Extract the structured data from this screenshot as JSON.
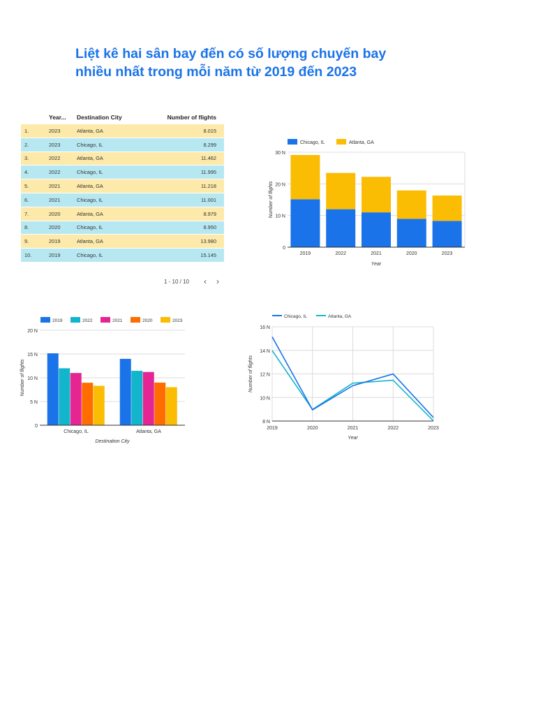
{
  "title": {
    "line1": "Liệt kê hai sân bay đến có số lượng chuyến bay",
    "line2": "nhiều nhất trong mỗi năm từ 2019 đến 2023"
  },
  "colors": {
    "title": "#1a73e8",
    "chicago": "#1a73e8",
    "atlanta": "#fbbc04",
    "y2019": "#1a73e8",
    "y2022": "#12b5cb",
    "y2021": "#e52592",
    "y2020": "#ff6d01",
    "y2023": "#fbbc04",
    "line_chicago": "#1a73e8",
    "line_atlanta": "#12b5cb",
    "row_odd": "#fde9a9",
    "row_even": "#b7e8f2"
  },
  "table": {
    "headers": {
      "year": "Year...",
      "city": "Destination City",
      "flights": "Number of flights"
    },
    "rows": [
      {
        "idx": "1.",
        "year": "2023",
        "city": "Atlanta, GA",
        "flights": "8.015"
      },
      {
        "idx": "2.",
        "year": "2023",
        "city": "Chicago, IL",
        "flights": "8.299"
      },
      {
        "idx": "3.",
        "year": "2022",
        "city": "Atlanta, GA",
        "flights": "11.462"
      },
      {
        "idx": "4.",
        "year": "2022",
        "city": "Chicago, IL",
        "flights": "11.995"
      },
      {
        "idx": "5.",
        "year": "2021",
        "city": "Atlanta, GA",
        "flights": "11.218"
      },
      {
        "idx": "6.",
        "year": "2021",
        "city": "Chicago, IL",
        "flights": "11.001"
      },
      {
        "idx": "7.",
        "year": "2020",
        "city": "Atlanta, GA",
        "flights": "8.979"
      },
      {
        "idx": "8.",
        "year": "2020",
        "city": "Chicago, IL",
        "flights": "8.950"
      },
      {
        "idx": "9.",
        "year": "2019",
        "city": "Atlanta, GA",
        "flights": "13.980"
      },
      {
        "idx": "10.",
        "year": "2019",
        "city": "Chicago, IL",
        "flights": "15.145"
      }
    ],
    "pagination": {
      "label": "1 - 10 / 10",
      "prev": "‹",
      "next": "›"
    }
  },
  "chart_data": [
    {
      "type": "bar",
      "stacked": true,
      "title": "",
      "categories": [
        "2019",
        "2022",
        "2021",
        "2020",
        "2023"
      ],
      "series": [
        {
          "name": "Chicago, IL",
          "values": [
            15.145,
            11.995,
            11.001,
            8.95,
            8.299
          ]
        },
        {
          "name": "Atlanta, GA",
          "values": [
            13.98,
            11.462,
            11.218,
            8.979,
            8.015
          ]
        }
      ],
      "xlabel": "Year",
      "ylabel": "Number of flights",
      "ylim": [
        0,
        30
      ],
      "yticks": [
        "0",
        "10 N",
        "20 N",
        "30 N"
      ],
      "legend": "top-left"
    },
    {
      "type": "bar",
      "stacked": false,
      "title": "",
      "categories": [
        "Chicago, IL",
        "Atlanta, GA"
      ],
      "series": [
        {
          "name": "2019",
          "values": [
            15.145,
            13.98
          ]
        },
        {
          "name": "2022",
          "values": [
            11.995,
            11.462
          ]
        },
        {
          "name": "2021",
          "values": [
            11.001,
            11.218
          ]
        },
        {
          "name": "2020",
          "values": [
            8.95,
            8.979
          ]
        },
        {
          "name": "2023",
          "values": [
            8.299,
            8.015
          ]
        }
      ],
      "xlabel": "Destination City",
      "ylabel": "Number of flights",
      "ylim": [
        0,
        20
      ],
      "yticks": [
        "0",
        "5 N",
        "10 N",
        "15 N",
        "20 N"
      ],
      "legend": "top"
    },
    {
      "type": "line",
      "title": "",
      "categories": [
        "2019",
        "2020",
        "2021",
        "2022",
        "2023"
      ],
      "series": [
        {
          "name": "Chicago, IL",
          "values": [
            15.145,
            8.95,
            11.001,
            11.995,
            8.299
          ]
        },
        {
          "name": "Atlanta, GA",
          "values": [
            13.98,
            8.979,
            11.218,
            11.462,
            8.015
          ]
        }
      ],
      "xlabel": "Year",
      "ylabel": "Number of flights",
      "ylim": [
        8,
        16
      ],
      "yticks": [
        "8 N",
        "10 N",
        "12 N",
        "14 N",
        "16 N"
      ],
      "legend": "top-left"
    }
  ]
}
